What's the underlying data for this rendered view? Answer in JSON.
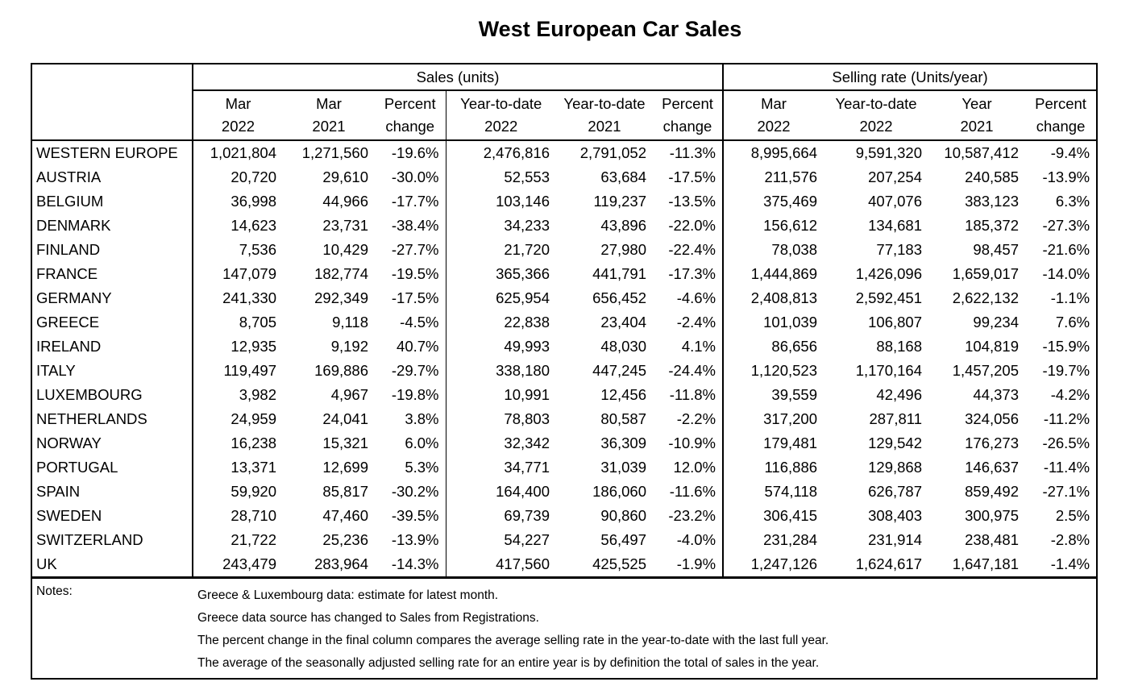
{
  "title": "West European Car Sales",
  "table": {
    "group_headers": {
      "sales": "Sales (units)",
      "selling_rate": "Selling rate (Units/year)"
    },
    "columns": [
      {
        "line1": "Mar",
        "line2": "2022"
      },
      {
        "line1": "Mar",
        "line2": "2021"
      },
      {
        "line1": "Percent",
        "line2": "change"
      },
      {
        "line1": "Year-to-date",
        "line2": "2022"
      },
      {
        "line1": "Year-to-date",
        "line2": "2021"
      },
      {
        "line1": "Percent",
        "line2": "change"
      },
      {
        "line1": "Mar",
        "line2": "2022"
      },
      {
        "line1": "Year-to-date",
        "line2": "2022"
      },
      {
        "line1": "Year",
        "line2": "2021"
      },
      {
        "line1": "Percent",
        "line2": "change"
      }
    ],
    "rows": [
      {
        "country": "WESTERN EUROPE",
        "values": [
          "1,021,804",
          "1,271,560",
          "-19.6%",
          "2,476,816",
          "2,791,052",
          "-11.3%",
          "8,995,664",
          "9,591,320",
          "10,587,412",
          "-9.4%"
        ]
      },
      {
        "country": "AUSTRIA",
        "values": [
          "20,720",
          "29,610",
          "-30.0%",
          "52,553",
          "63,684",
          "-17.5%",
          "211,576",
          "207,254",
          "240,585",
          "-13.9%"
        ]
      },
      {
        "country": "BELGIUM",
        "values": [
          "36,998",
          "44,966",
          "-17.7%",
          "103,146",
          "119,237",
          "-13.5%",
          "375,469",
          "407,076",
          "383,123",
          "6.3%"
        ]
      },
      {
        "country": "DENMARK",
        "values": [
          "14,623",
          "23,731",
          "-38.4%",
          "34,233",
          "43,896",
          "-22.0%",
          "156,612",
          "134,681",
          "185,372",
          "-27.3%"
        ]
      },
      {
        "country": "FINLAND",
        "values": [
          "7,536",
          "10,429",
          "-27.7%",
          "21,720",
          "27,980",
          "-22.4%",
          "78,038",
          "77,183",
          "98,457",
          "-21.6%"
        ]
      },
      {
        "country": "FRANCE",
        "values": [
          "147,079",
          "182,774",
          "-19.5%",
          "365,366",
          "441,791",
          "-17.3%",
          "1,444,869",
          "1,426,096",
          "1,659,017",
          "-14.0%"
        ]
      },
      {
        "country": "GERMANY",
        "values": [
          "241,330",
          "292,349",
          "-17.5%",
          "625,954",
          "656,452",
          "-4.6%",
          "2,408,813",
          "2,592,451",
          "2,622,132",
          "-1.1%"
        ]
      },
      {
        "country": "GREECE",
        "values": [
          "8,705",
          "9,118",
          "-4.5%",
          "22,838",
          "23,404",
          "-2.4%",
          "101,039",
          "106,807",
          "99,234",
          "7.6%"
        ]
      },
      {
        "country": "IRELAND",
        "values": [
          "12,935",
          "9,192",
          "40.7%",
          "49,993",
          "48,030",
          "4.1%",
          "86,656",
          "88,168",
          "104,819",
          "-15.9%"
        ]
      },
      {
        "country": "ITALY",
        "values": [
          "119,497",
          "169,886",
          "-29.7%",
          "338,180",
          "447,245",
          "-24.4%",
          "1,120,523",
          "1,170,164",
          "1,457,205",
          "-19.7%"
        ]
      },
      {
        "country": "LUXEMBOURG",
        "values": [
          "3,982",
          "4,967",
          "-19.8%",
          "10,991",
          "12,456",
          "-11.8%",
          "39,559",
          "42,496",
          "44,373",
          "-4.2%"
        ]
      },
      {
        "country": "NETHERLANDS",
        "values": [
          "24,959",
          "24,041",
          "3.8%",
          "78,803",
          "80,587",
          "-2.2%",
          "317,200",
          "287,811",
          "324,056",
          "-11.2%"
        ]
      },
      {
        "country": "NORWAY",
        "values": [
          "16,238",
          "15,321",
          "6.0%",
          "32,342",
          "36,309",
          "-10.9%",
          "179,481",
          "129,542",
          "176,273",
          "-26.5%"
        ]
      },
      {
        "country": "PORTUGAL",
        "values": [
          "13,371",
          "12,699",
          "5.3%",
          "34,771",
          "31,039",
          "12.0%",
          "116,886",
          "129,868",
          "146,637",
          "-11.4%"
        ]
      },
      {
        "country": "SPAIN",
        "values": [
          "59,920",
          "85,817",
          "-30.2%",
          "164,400",
          "186,060",
          "-11.6%",
          "574,118",
          "626,787",
          "859,492",
          "-27.1%"
        ]
      },
      {
        "country": "SWEDEN",
        "values": [
          "28,710",
          "47,460",
          "-39.5%",
          "69,739",
          "90,860",
          "-23.2%",
          "306,415",
          "308,403",
          "300,975",
          "2.5%"
        ]
      },
      {
        "country": "SWITZERLAND",
        "values": [
          "21,722",
          "25,236",
          "-13.9%",
          "54,227",
          "56,497",
          "-4.0%",
          "231,284",
          "231,914",
          "238,481",
          "-2.8%"
        ]
      },
      {
        "country": "UK",
        "values": [
          "243,479",
          "283,964",
          "-14.3%",
          "417,560",
          "425,525",
          "-1.9%",
          "1,247,126",
          "1,624,617",
          "1,647,181",
          "-1.4%"
        ]
      }
    ]
  },
  "notes": {
    "label": "Notes:",
    "lines": [
      "Greece & Luxembourg data: estimate for latest month.",
      "Greece data source has changed to Sales from Registrations.",
      "The percent change in the final column compares the average selling rate in the year-to-date with the last full year.",
      "The average of the seasonally adjusted selling rate for an entire year is by definition the total of sales in the year."
    ]
  },
  "colors": {
    "text": "#000000",
    "border": "#000000",
    "background": "#ffffff"
  }
}
